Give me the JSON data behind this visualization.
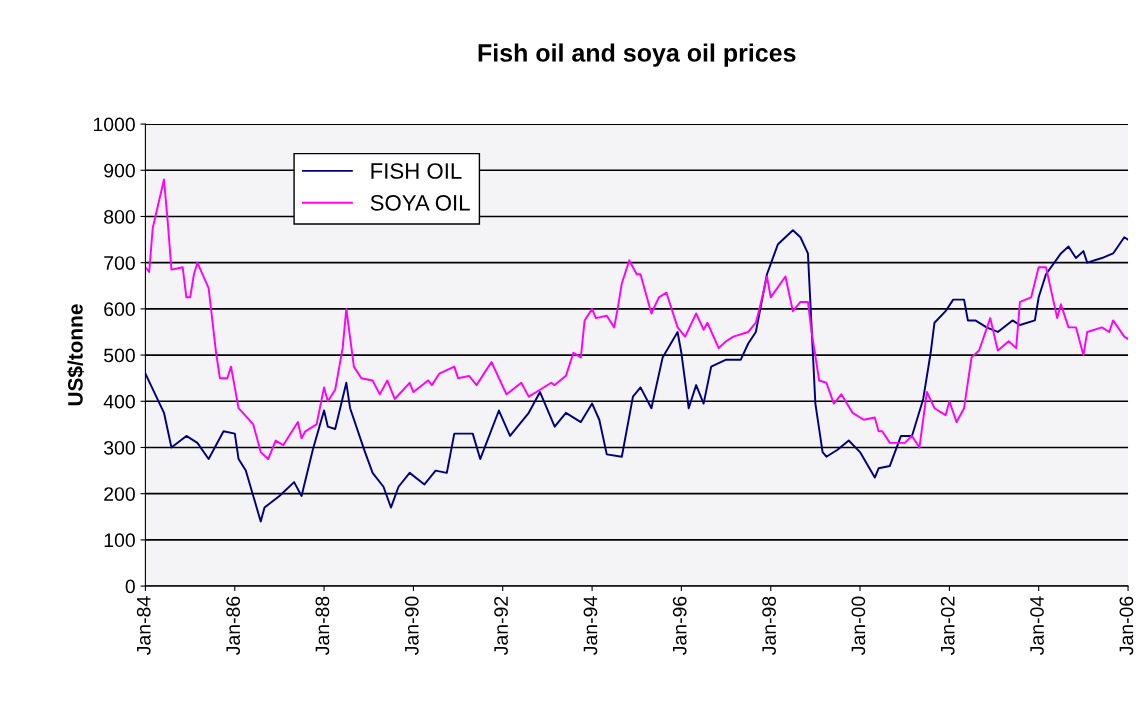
{
  "chart_data": {
    "type": "line",
    "title": "Fish oil and soya oil prices",
    "ylabel": "US$/tonne",
    "xlim": [
      "1984-01",
      "2006-01"
    ],
    "ylim": [
      0,
      1000
    ],
    "xticks": [
      {
        "value": "1984-01",
        "label": "Jan-84"
      },
      {
        "value": "1986-01",
        "label": "Jan-86"
      },
      {
        "value": "1988-01",
        "label": "Jan-88"
      },
      {
        "value": "1990-01",
        "label": "Jan-90"
      },
      {
        "value": "1992-01",
        "label": "Jan-92"
      },
      {
        "value": "1994-01",
        "label": "Jan-94"
      },
      {
        "value": "1996-01",
        "label": "Jan-96"
      },
      {
        "value": "1998-01",
        "label": "Jan-98"
      },
      {
        "value": "2000-01",
        "label": "Jan-00"
      },
      {
        "value": "2002-01",
        "label": "Jan-02"
      },
      {
        "value": "2004-01",
        "label": "Jan-04"
      },
      {
        "value": "2006-01",
        "label": "Jan-06"
      }
    ],
    "yticks": [
      0,
      100,
      200,
      300,
      400,
      500,
      600,
      700,
      800,
      900,
      1000
    ],
    "grid": "y",
    "legend": "top left",
    "marker": "none",
    "line_style": "solid",
    "series": [
      {
        "name": "FISH OIL",
        "color": "#000080",
        "x": [
          "1984-01",
          "1984-06",
          "1984-08",
          "1984-12",
          "1985-03",
          "1985-06",
          "1985-10",
          "1986-01",
          "1986-02",
          "1986-04",
          "1986-08",
          "1986-09",
          "1987-01",
          "1987-05",
          "1987-07",
          "1987-10",
          "1988-01",
          "1988-02",
          "1988-04",
          "1988-07",
          "1988-08",
          "1988-12",
          "1989-02",
          "1989-05",
          "1989-07",
          "1989-09",
          "1989-12",
          "1990-04",
          "1990-07",
          "1990-10",
          "1990-12",
          "1991-05",
          "1991-07",
          "1991-12",
          "1992-03",
          "1992-08",
          "1992-11",
          "1993-03",
          "1993-06",
          "1993-10",
          "1994-01",
          "1994-03",
          "1994-05",
          "1994-09",
          "1994-12",
          "1995-02",
          "1995-05",
          "1995-08",
          "1995-12",
          "1996-01",
          "1996-03",
          "1996-05",
          "1996-07",
          "1996-09",
          "1997-01",
          "1997-05",
          "1997-07",
          "1997-09",
          "1997-12",
          "1998-03",
          "1998-07",
          "1998-09",
          "1998-11",
          "1999-01",
          "1999-03",
          "1999-04",
          "1999-07",
          "1999-10",
          "2000-01",
          "2000-05",
          "2000-06",
          "2000-09",
          "2000-12",
          "2001-03",
          "2001-06",
          "2001-08",
          "2001-09",
          "2001-12",
          "2002-02",
          "2002-05",
          "2002-06",
          "2002-08",
          "2002-11",
          "2003-02",
          "2003-06",
          "2003-08",
          "2003-12",
          "2004-01",
          "2004-03",
          "2004-07",
          "2004-09",
          "2004-11",
          "2005-01",
          "2005-02",
          "2005-06",
          "2005-09",
          "2005-12",
          "2006-01"
        ],
        "values": [
          460,
          375,
          300,
          325,
          310,
          275,
          335,
          330,
          275,
          250,
          140,
          170,
          195,
          225,
          195,
          295,
          380,
          345,
          340,
          440,
          385,
          290,
          245,
          215,
          170,
          215,
          245,
          220,
          250,
          245,
          330,
          330,
          275,
          380,
          325,
          375,
          420,
          345,
          375,
          355,
          395,
          360,
          285,
          280,
          410,
          430,
          385,
          495,
          550,
          505,
          385,
          435,
          395,
          475,
          490,
          490,
          525,
          550,
          675,
          740,
          770,
          755,
          720,
          395,
          290,
          280,
          295,
          315,
          290,
          235,
          255,
          260,
          325,
          325,
          405,
          505,
          570,
          595,
          620,
          620,
          575,
          575,
          560,
          550,
          575,
          565,
          575,
          625,
          675,
          720,
          735,
          710,
          725,
          700,
          710,
          720,
          755,
          750
        ]
      },
      {
        "name": "SOYA OIL",
        "color": "#ff00ff",
        "x": [
          "1984-01",
          "1984-02",
          "1984-03",
          "1984-06",
          "1984-07",
          "1984-08",
          "1984-11",
          "1984-12",
          "1985-01",
          "1985-02",
          "1985-03",
          "1985-06",
          "1985-08",
          "1985-09",
          "1985-11",
          "1985-12",
          "1986-02",
          "1986-06",
          "1986-08",
          "1986-10",
          "1986-12",
          "1987-02",
          "1987-06",
          "1987-07",
          "1987-08",
          "1987-11",
          "1988-01",
          "1988-02",
          "1988-04",
          "1988-06",
          "1988-07",
          "1988-09",
          "1988-11",
          "1989-02",
          "1989-04",
          "1989-06",
          "1989-08",
          "1989-12",
          "1990-01",
          "1990-05",
          "1990-06",
          "1990-08",
          "1990-12",
          "1991-01",
          "1991-04",
          "1991-06",
          "1991-10",
          "1992-02",
          "1992-06",
          "1992-08",
          "1992-11",
          "1993-02",
          "1993-03",
          "1993-06",
          "1993-08",
          "1993-10",
          "1993-11",
          "1994-01",
          "1994-02",
          "1994-05",
          "1994-07",
          "1994-08",
          "1994-09",
          "1994-11",
          "1995-01",
          "1995-02",
          "1995-05",
          "1995-07",
          "1995-09",
          "1995-12",
          "1996-02",
          "1996-05",
          "1996-07",
          "1996-08",
          "1996-11",
          "1997-01",
          "1997-03",
          "1997-07",
          "1997-09",
          "1997-10",
          "1997-12",
          "1998-01",
          "1998-05",
          "1998-07",
          "1998-09",
          "1998-11",
          "1998-12",
          "1999-02",
          "1999-04",
          "1999-06",
          "1999-08",
          "1999-11",
          "2000-02",
          "2000-05",
          "2000-06",
          "2000-07",
          "2000-09",
          "2001-01",
          "2001-03",
          "2001-05",
          "2001-07",
          "2001-09",
          "2001-12",
          "2002-01",
          "2002-03",
          "2002-05",
          "2002-07",
          "2002-09",
          "2002-12",
          "2003-02",
          "2003-05",
          "2003-07",
          "2003-08",
          "2003-11",
          "2004-01",
          "2004-03",
          "2004-06",
          "2004-07",
          "2004-09",
          "2004-11",
          "2005-01",
          "2005-02",
          "2005-06",
          "2005-08",
          "2005-09",
          "2005-12",
          "2006-01"
        ],
        "values": [
          690,
          680,
          775,
          880,
          790,
          685,
          690,
          625,
          625,
          675,
          700,
          645,
          505,
          450,
          450,
          475,
          385,
          350,
          290,
          275,
          315,
          305,
          355,
          320,
          335,
          350,
          430,
          400,
          425,
          515,
          600,
          475,
          450,
          445,
          415,
          445,
          405,
          440,
          420,
          445,
          435,
          460,
          475,
          450,
          455,
          435,
          485,
          415,
          440,
          410,
          425,
          440,
          435,
          455,
          505,
          495,
          575,
          600,
          580,
          585,
          560,
          605,
          655,
          705,
          675,
          675,
          590,
          625,
          635,
          560,
          540,
          590,
          555,
          570,
          515,
          530,
          540,
          550,
          570,
          600,
          670,
          625,
          670,
          595,
          615,
          615,
          550,
          445,
          440,
          395,
          415,
          375,
          360,
          365,
          335,
          335,
          310,
          310,
          325,
          300,
          420,
          385,
          370,
          400,
          355,
          385,
          495,
          510,
          580,
          510,
          530,
          515,
          615,
          625,
          690,
          690,
          580,
          610,
          560,
          560,
          500,
          550,
          560,
          550,
          575,
          540,
          535
        ]
      }
    ]
  }
}
